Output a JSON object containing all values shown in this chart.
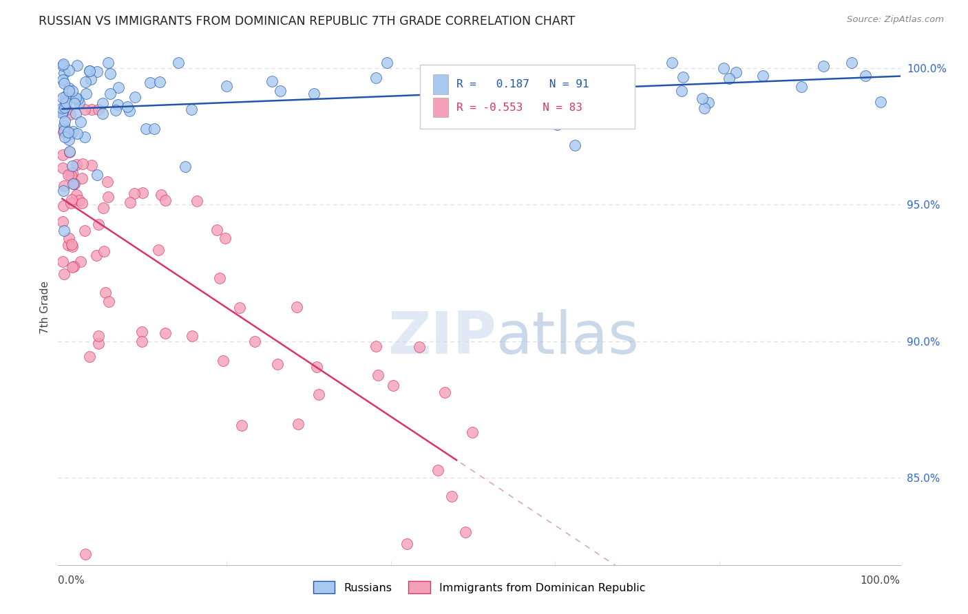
{
  "title": "RUSSIAN VS IMMIGRANTS FROM DOMINICAN REPUBLIC 7TH GRADE CORRELATION CHART",
  "source": "Source: ZipAtlas.com",
  "ylabel": "7th Grade",
  "right_yticks": [
    "100.0%",
    "95.0%",
    "90.0%",
    "85.0%"
  ],
  "right_ytick_vals": [
    1.0,
    0.95,
    0.9,
    0.85
  ],
  "legend_blue_label": "Russians",
  "legend_pink_label": "Immigrants from Dominican Republic",
  "r_blue": 0.187,
  "n_blue": 91,
  "r_pink": -0.553,
  "n_pink": 83,
  "blue_color": "#A8C8F0",
  "pink_color": "#F4A0B8",
  "blue_line_color": "#2255AA",
  "pink_line_color": "#DD3366",
  "diagonal_color": "#DDAAAA",
  "background_color": "#FFFFFF",
  "grid_color": "#DDDDDD",
  "watermark_zip": "ZIP",
  "watermark_atlas": "atlas",
  "seed": 12
}
